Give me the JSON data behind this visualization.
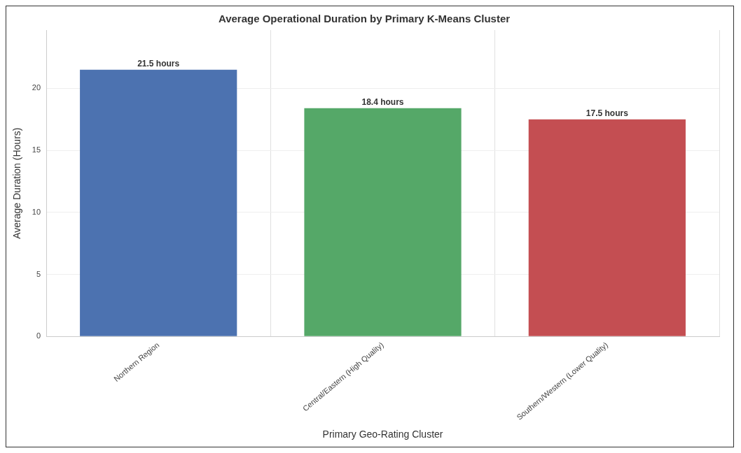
{
  "chart_data": {
    "type": "bar",
    "title": "Average Operational Duration by Primary K-Means Cluster",
    "xlabel": "Primary Geo-Rating Cluster",
    "ylabel": "Average Duration (Hours)",
    "categories": [
      "Northern Region",
      "Central/Eastern (High Quality)",
      "Southern/Western (Lower Quality)"
    ],
    "values": [
      21.5,
      18.4,
      17.5
    ],
    "colors": [
      "#4c72b0",
      "#55a868",
      "#c44e52"
    ],
    "value_labels": [
      "21.5 hours",
      "18.4 hours",
      "17.5 hours"
    ],
    "ylim": [
      0,
      24.7
    ],
    "yticks": [
      0,
      5,
      10,
      15,
      20
    ],
    "grid": true
  }
}
